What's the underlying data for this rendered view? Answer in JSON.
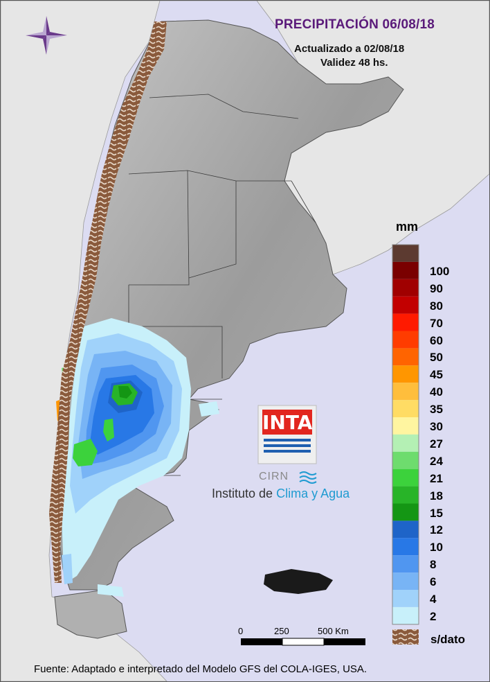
{
  "map": {
    "title": "PRECIPITACIÓN 06/08/18",
    "updated": "Actualizado a 02/08/18",
    "validity": "Validez 48 hs.",
    "footer": "Fuente: Adaptado e interpretado del Modelo GFS del COLA-IGES, USA."
  },
  "legend": {
    "unit": "mm",
    "classes": [
      {
        "label": "",
        "color": "#5c3a30"
      },
      {
        "label": "100",
        "color": "#7a0000"
      },
      {
        "label": "90",
        "color": "#a00000"
      },
      {
        "label": "80",
        "color": "#c20000"
      },
      {
        "label": "70",
        "color": "#ff1a00"
      },
      {
        "label": "60",
        "color": "#ff3c00"
      },
      {
        "label": "50",
        "color": "#ff6400"
      },
      {
        "label": "45",
        "color": "#ff9600"
      },
      {
        "label": "40",
        "color": "#ffbe3c"
      },
      {
        "label": "35",
        "color": "#ffdc64"
      },
      {
        "label": "30",
        "color": "#fff5a0"
      },
      {
        "label": "27",
        "color": "#b4f0b4"
      },
      {
        "label": "24",
        "color": "#6edc6e"
      },
      {
        "label": "21",
        "color": "#3cd23c"
      },
      {
        "label": "18",
        "color": "#28b428"
      },
      {
        "label": "15",
        "color": "#149614"
      },
      {
        "label": "12",
        "color": "#1e64c8"
      },
      {
        "label": "10",
        "color": "#2878e6"
      },
      {
        "label": "8",
        "color": "#5096f0"
      },
      {
        "label": "6",
        "color": "#78b4f5"
      },
      {
        "label": "4",
        "color": "#a0d2fa"
      },
      {
        "label": "2",
        "color": "#c8f0fa"
      }
    ],
    "no_data_label": "s/dato"
  },
  "scale": {
    "ticks": [
      "0",
      "250",
      "500 Km"
    ]
  },
  "logo": {
    "brand": "INTA",
    "unit": "CIRN",
    "org_prefix": "Instituto de",
    "org_accent": "Clima y Agua"
  },
  "colors": {
    "sea": "#dcdcf2",
    "land": "#9a9a9a",
    "neighbor": "#e6e6e6",
    "title": "#5a1a7a",
    "no_data": "#8a5a3c"
  }
}
